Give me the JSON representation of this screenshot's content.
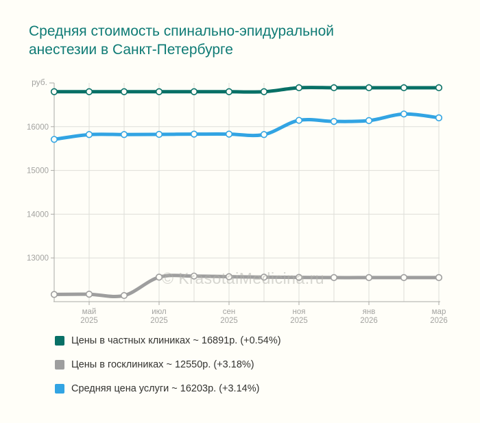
{
  "page": {
    "background": "#fffef8"
  },
  "title": {
    "line1": "Средняя стоимость спинально-эпидуральной",
    "line2": "анестезии в Санкт-Петербурге",
    "color": "#0f7b75"
  },
  "watermark": "© KrasotaiMedicina.ru",
  "chart_data": {
    "type": "line",
    "y_axis_label": "руб.",
    "ylim": [
      12000,
      17000
    ],
    "y_ticks": [
      13000,
      14000,
      15000,
      16000
    ],
    "grid": true,
    "x": [
      "апр 2025",
      "май 2025",
      "июн 2025",
      "июл 2025",
      "авг 2025",
      "сен 2025",
      "окт 2025",
      "ноя 2025",
      "дек 2025",
      "янв 2026",
      "фев 2026",
      "мар 2026"
    ],
    "x_tick_indices": [
      1,
      3,
      5,
      7,
      9,
      11
    ],
    "x_tick_labels": [
      {
        "month": "май",
        "year": "2025"
      },
      {
        "month": "июл",
        "year": "2025"
      },
      {
        "month": "сен",
        "year": "2025"
      },
      {
        "month": "ноя",
        "year": "2025"
      },
      {
        "month": "янв",
        "year": "2026"
      },
      {
        "month": "мар",
        "year": "2026"
      }
    ],
    "series": [
      {
        "name": "Цены в частных клиниках",
        "color": "#087066",
        "values": [
          16800,
          16800,
          16800,
          16800,
          16800,
          16800,
          16800,
          16891,
          16891,
          16891,
          16891,
          16891
        ]
      },
      {
        "name": "Цены в госклиниках",
        "color": "#9e9e9e",
        "values": [
          12165,
          12170,
          12140,
          12560,
          12585,
          12570,
          12560,
          12555,
          12550,
          12550,
          12550,
          12550
        ]
      },
      {
        "name": "Средняя цена услуги",
        "color": "#32a4e3",
        "values": [
          15710,
          15820,
          15820,
          15825,
          15830,
          15830,
          15820,
          16145,
          16120,
          16140,
          16290,
          16203
        ]
      }
    ],
    "axis_colors": {
      "grid": "#deded9",
      "axis": "#aaaaa6",
      "tick_text": "#a3a3a0"
    }
  },
  "legend": {
    "items": [
      {
        "label": "Цены в частных клиниках ~ 16891р. (+0.54%)",
        "color": "#087066"
      },
      {
        "label": "Цены в госклиниках ~ 12550р. (+3.18%)",
        "color": "#9e9e9e"
      },
      {
        "label": "Средняя цена услуги ~ 16203р. (+3.14%)",
        "color": "#32a4e3"
      }
    ]
  }
}
